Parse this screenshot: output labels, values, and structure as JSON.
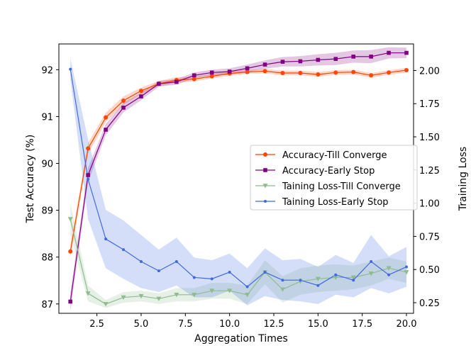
{
  "chart_data": {
    "type": "line",
    "title": "",
    "xlabel": "Aggregation Times",
    "ylabel": "Test Accuracy (%)",
    "y2label": "Training Loss",
    "xlim": [
      0.35,
      20.4
    ],
    "ylim": [
      86.8,
      92.55
    ],
    "y2lim": [
      0.17,
      2.2
    ],
    "x_ticks": [
      2.5,
      5.0,
      7.5,
      10.0,
      12.5,
      15.0,
      17.5,
      20.0
    ],
    "x_tick_labels": [
      "2.5",
      "5.0",
      "7.5",
      "10.0",
      "12.5",
      "15.0",
      "17.5",
      "20.0"
    ],
    "y_ticks": [
      87,
      88,
      89,
      90,
      91,
      92
    ],
    "y_tick_labels": [
      "87",
      "88",
      "89",
      "90",
      "91",
      "92"
    ],
    "y2_ticks": [
      0.25,
      0.5,
      0.75,
      1.0,
      1.25,
      1.5,
      1.75,
      2.0
    ],
    "y2_tick_labels": [
      "0.25",
      "0.50",
      "0.75",
      "1.00",
      "1.25",
      "1.50",
      "1.75",
      "2.00"
    ],
    "x": [
      1,
      2,
      3,
      4,
      5,
      6,
      7,
      8,
      9,
      10,
      11,
      12,
      13,
      14,
      15,
      16,
      17,
      18,
      19,
      20
    ],
    "legend_position": "center-right",
    "series": [
      {
        "name": "Accuracy-Till Converge",
        "axis": "left",
        "color": "#ff4500",
        "marker": "circle",
        "values": [
          88.12,
          90.32,
          90.98,
          91.34,
          91.55,
          91.7,
          91.78,
          91.8,
          91.86,
          91.92,
          91.95,
          91.97,
          91.93,
          91.93,
          91.9,
          91.94,
          91.95,
          91.88,
          91.94,
          91.99
        ],
        "band": [
          0.14,
          0.12,
          0.1,
          0.09,
          0.07,
          0.06,
          0.06,
          0.05,
          0.05,
          0.05,
          0.04,
          0.05,
          0.05,
          0.05,
          0.05,
          0.05,
          0.05,
          0.05,
          0.05,
          0.05
        ]
      },
      {
        "name": "Accuracy-Early Stop",
        "axis": "left",
        "color": "#800080",
        "marker": "square",
        "values": [
          87.05,
          89.75,
          90.72,
          91.19,
          91.43,
          91.7,
          91.74,
          91.88,
          91.94,
          91.96,
          92.03,
          92.11,
          92.17,
          92.18,
          92.21,
          92.23,
          92.28,
          92.28,
          92.36,
          92.36
        ],
        "band": [
          0.2,
          0.15,
          0.12,
          0.1,
          0.08,
          0.06,
          0.06,
          0.06,
          0.06,
          0.07,
          0.08,
          0.09,
          0.1,
          0.11,
          0.12,
          0.13,
          0.13,
          0.14,
          0.12,
          0.11
        ]
      },
      {
        "name": "Taining Loss-Till Converge",
        "axis": "right",
        "color": "#8fbc8f",
        "marker": "triangle-down",
        "values": [
          0.88,
          0.32,
          0.24,
          0.29,
          0.3,
          0.28,
          0.31,
          0.31,
          0.34,
          0.34,
          0.31,
          0.48,
          0.35,
          0.41,
          0.43,
          0.44,
          0.44,
          0.47,
          0.51,
          0.48
        ],
        "band": [
          0.12,
          0.06,
          0.03,
          0.04,
          0.04,
          0.04,
          0.05,
          0.05,
          0.06,
          0.06,
          0.07,
          0.09,
          0.1,
          0.1,
          0.1,
          0.1,
          0.09,
          0.09,
          0.08,
          0.08
        ]
      },
      {
        "name": "Taining Loss-Early Stop",
        "axis": "right",
        "color": "#4169e1",
        "marker": "point",
        "values": [
          2.01,
          1.18,
          0.73,
          0.65,
          0.56,
          0.49,
          0.56,
          0.44,
          0.43,
          0.48,
          0.37,
          0.48,
          0.42,
          0.42,
          0.38,
          0.46,
          0.42,
          0.56,
          0.46,
          0.52
        ],
        "band": [
          0.08,
          0.3,
          0.22,
          0.22,
          0.2,
          0.16,
          0.18,
          0.15,
          0.14,
          0.14,
          0.14,
          0.18,
          0.15,
          0.16,
          0.14,
          0.15,
          0.13,
          0.2,
          0.14,
          0.15
        ]
      }
    ]
  }
}
